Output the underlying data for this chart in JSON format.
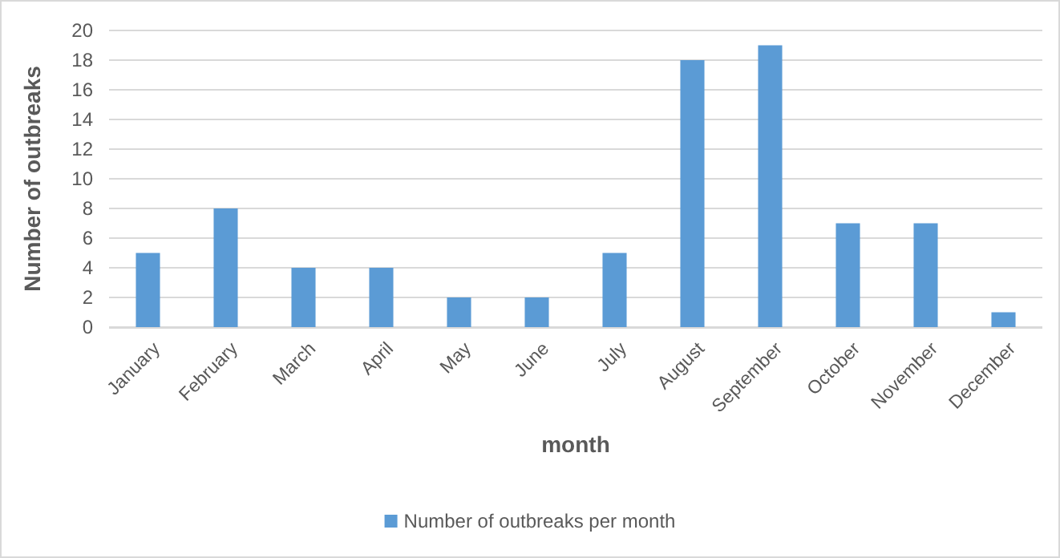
{
  "chart_data": {
    "type": "bar",
    "xlabel": "month",
    "ylabel": "Number of outbreaks",
    "categories": [
      "January",
      "February",
      "March",
      "April",
      "May",
      "June",
      "July",
      "August",
      "September",
      "October",
      "November",
      "December"
    ],
    "series": [
      {
        "name": "Number of outbreaks per month",
        "color": "#5b9bd5",
        "values": [
          5,
          8,
          4,
          4,
          2,
          2,
          5,
          18,
          19,
          7,
          7,
          1
        ]
      }
    ],
    "ylim": [
      0,
      20
    ],
    "yticks": [
      0,
      2,
      4,
      6,
      8,
      10,
      12,
      14,
      16,
      18,
      20
    ],
    "grid": "y",
    "legend": "bottom"
  }
}
